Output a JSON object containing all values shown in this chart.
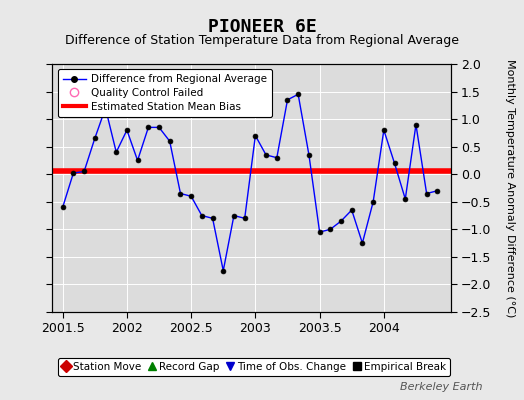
{
  "title": "PIONEER 6E",
  "subtitle": "Difference of Station Temperature Data from Regional Average",
  "ylabel_right": "Monthly Temperature Anomaly Difference (°C)",
  "watermark": "Berkeley Earth",
  "bias_value": 0.05,
  "xlim": [
    2001.42,
    2004.52
  ],
  "ylim": [
    -2.5,
    2.0
  ],
  "yticks": [
    -2.5,
    -2.0,
    -1.5,
    -1.0,
    -0.5,
    0.0,
    0.5,
    1.0,
    1.5,
    2.0
  ],
  "xticks": [
    2001.5,
    2002.0,
    2002.5,
    2003.0,
    2003.5,
    2004.0
  ],
  "xticklabels": [
    "2001.5",
    "2002",
    "2002.5",
    "2003",
    "2003.5",
    "2004"
  ],
  "line_color": "#0000ff",
  "marker_color": "#000000",
  "bias_color": "#ff0000",
  "background_color": "#e0e0e0",
  "plot_bg": "#dcdcdc",
  "x_data": [
    2001.5,
    2001.583,
    2001.667,
    2001.75,
    2001.833,
    2001.917,
    2002.0,
    2002.083,
    2002.167,
    2002.25,
    2002.333,
    2002.417,
    2002.5,
    2002.583,
    2002.667,
    2002.75,
    2002.833,
    2002.917,
    2003.0,
    2003.083,
    2003.167,
    2003.25,
    2003.333,
    2003.417,
    2003.5,
    2003.583,
    2003.667,
    2003.75,
    2003.833,
    2003.917,
    2004.0,
    2004.083,
    2004.167,
    2004.25,
    2004.333,
    2004.417
  ],
  "y_data": [
    -0.6,
    0.02,
    0.05,
    0.65,
    1.2,
    0.4,
    0.8,
    0.25,
    0.85,
    0.85,
    0.6,
    -0.35,
    -0.4,
    -0.75,
    -0.8,
    -1.75,
    -0.75,
    -0.8,
    0.7,
    0.35,
    0.3,
    1.35,
    1.45,
    0.35,
    -1.05,
    -1.0,
    -0.85,
    -0.65,
    -1.25,
    -0.5,
    0.8,
    0.2,
    -0.45,
    0.9,
    -0.35,
    -0.3
  ],
  "legend1_items": [
    {
      "label": "Difference from Regional Average",
      "color": "#0000ff",
      "marker": "o",
      "linestyle": "-"
    },
    {
      "label": "Quality Control Failed",
      "color": "#ff69b4",
      "marker": "o",
      "linestyle": "none"
    },
    {
      "label": "Estimated Station Mean Bias",
      "color": "#ff0000",
      "marker": "none",
      "linestyle": "-"
    }
  ],
  "legend2_items": [
    {
      "label": "Station Move",
      "color": "#cc0000",
      "marker": "D"
    },
    {
      "label": "Record Gap",
      "color": "#008000",
      "marker": "^"
    },
    {
      "label": "Time of Obs. Change",
      "color": "#0000cc",
      "marker": "v"
    },
    {
      "label": "Empirical Break",
      "color": "#000000",
      "marker": "s"
    }
  ],
  "title_fontsize": 13,
  "subtitle_fontsize": 9,
  "tick_fontsize": 9,
  "ylabel_fontsize": 8
}
